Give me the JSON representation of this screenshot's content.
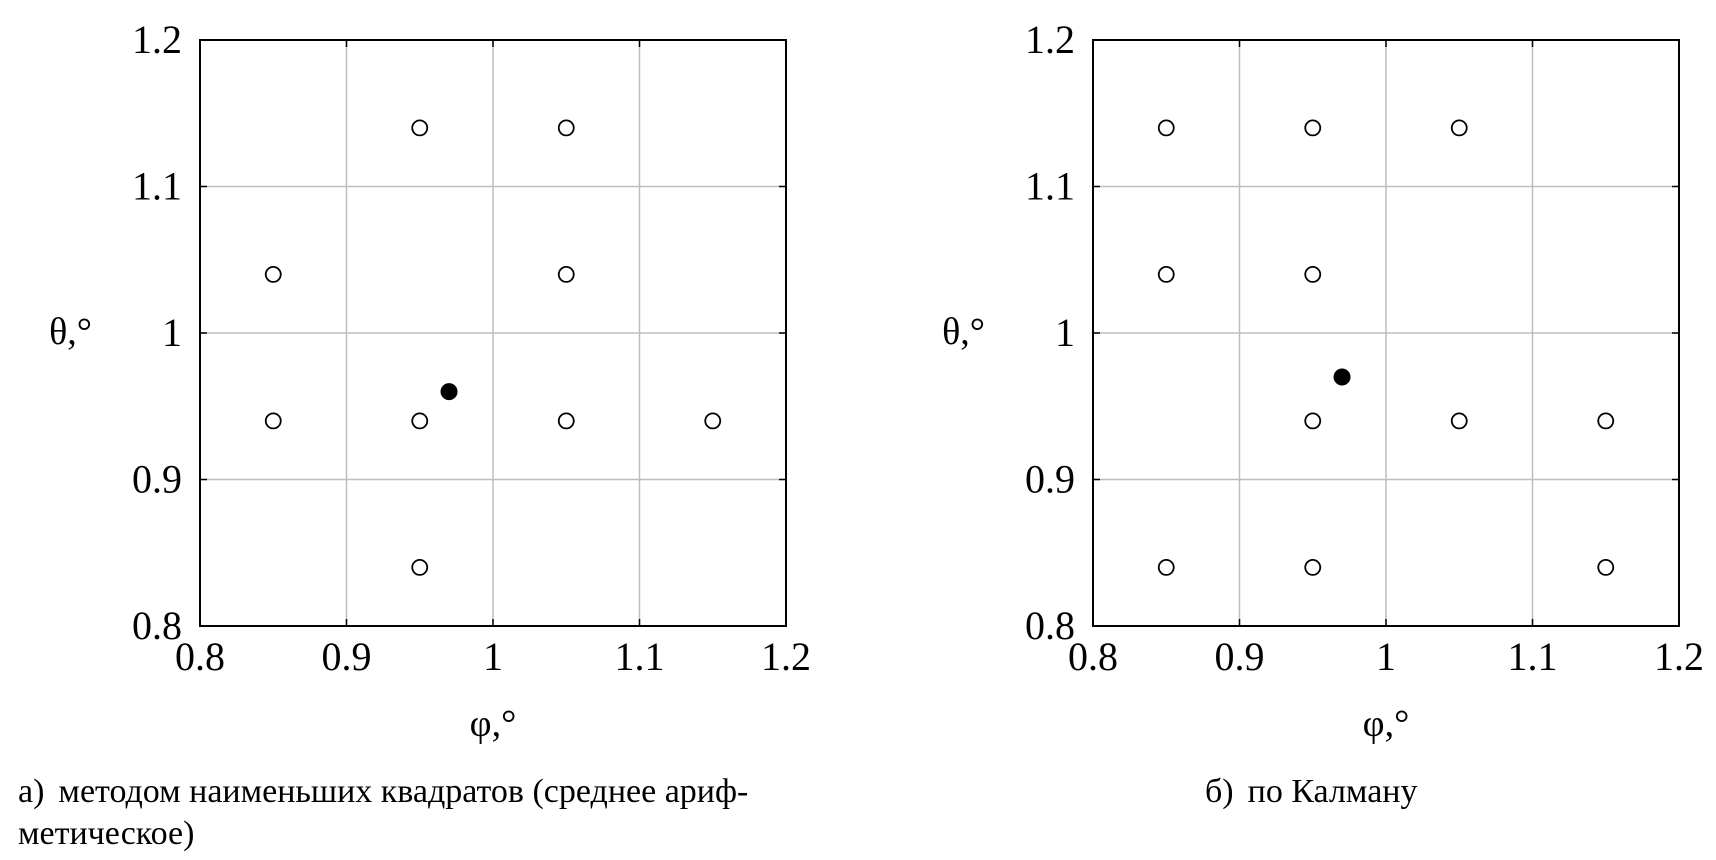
{
  "chart_data": [
    {
      "type": "scatter",
      "xlabel": "φ,°",
      "ylabel": "θ,°",
      "xlim": [
        0.8,
        1.2
      ],
      "ylim": [
        0.8,
        1.2
      ],
      "xticks": [
        "0.8",
        "0.9",
        "1",
        "1.1",
        "1.2"
      ],
      "yticks": [
        "0.8",
        "0.9",
        "1",
        "1.1",
        "1.2"
      ],
      "grid": true,
      "caption_prefix": "а)",
      "caption": "методом наименьших квадратов (среднее ариф-",
      "caption_line2": "метическое)",
      "series": [
        {
          "marker": "open-circle",
          "points": [
            [
              0.95,
              1.14
            ],
            [
              1.05,
              1.14
            ],
            [
              0.85,
              1.04
            ],
            [
              1.05,
              1.04
            ],
            [
              0.85,
              0.94
            ],
            [
              0.95,
              0.94
            ],
            [
              1.05,
              0.94
            ],
            [
              1.15,
              0.94
            ],
            [
              0.95,
              0.84
            ]
          ]
        },
        {
          "marker": "filled-circle",
          "points": [
            [
              0.97,
              0.96
            ]
          ]
        }
      ]
    },
    {
      "type": "scatter",
      "xlabel": "φ,°",
      "ylabel": "θ,°",
      "xlim": [
        0.8,
        1.2
      ],
      "ylim": [
        0.8,
        1.2
      ],
      "xticks": [
        "0.8",
        "0.9",
        "1",
        "1.1",
        "1.2"
      ],
      "yticks": [
        "0.8",
        "0.9",
        "1",
        "1.1",
        "1.2"
      ],
      "grid": true,
      "caption_prefix": "б)",
      "caption": "по Калману",
      "series": [
        {
          "marker": "open-circle",
          "points": [
            [
              0.85,
              1.14
            ],
            [
              0.95,
              1.14
            ],
            [
              1.05,
              1.14
            ],
            [
              0.85,
              1.04
            ],
            [
              0.95,
              1.04
            ],
            [
              0.95,
              0.94
            ],
            [
              1.05,
              0.94
            ],
            [
              1.15,
              0.94
            ],
            [
              0.85,
              0.84
            ],
            [
              0.95,
              0.84
            ],
            [
              1.15,
              0.84
            ]
          ]
        },
        {
          "marker": "filled-circle",
          "points": [
            [
              0.97,
              0.97
            ]
          ]
        }
      ]
    }
  ]
}
